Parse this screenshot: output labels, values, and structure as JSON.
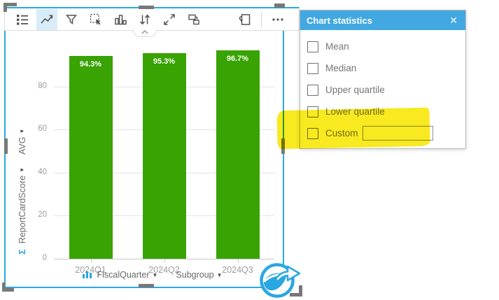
{
  "colors": {
    "card_border": "#29A9E2",
    "panel_header": "#41A8E1",
    "bar": "#38A303",
    "highlight": "#F8E80C"
  },
  "toolbar": {
    "buttons": [
      "legend",
      "line-chart",
      "filter",
      "selection-tools",
      "column-chart",
      "sort",
      "maximize",
      "cross-filters",
      "flip-card",
      "more-options"
    ],
    "selected": "line-chart"
  },
  "panel": {
    "title": "Chart statistics",
    "close_label": "✕",
    "options": [
      "Mean",
      "Median",
      "Upper quartile",
      "Lower quartile",
      "Custom"
    ],
    "custom_value": ""
  },
  "chart_data": {
    "type": "bar",
    "categories": [
      "2024Q1",
      "2024Q2",
      "2024Q3"
    ],
    "values": [
      94.3,
      95.3,
      96.7
    ],
    "value_labels": [
      "94.3%",
      "95.3%",
      "96.7%"
    ],
    "y_axis": {
      "stat": "AVG",
      "field": "ReportCardScore",
      "ticks": [
        0,
        20,
        40,
        60,
        80
      ],
      "lim": [
        0,
        100
      ]
    },
    "x_axis": {
      "field": "FiscalQuarter",
      "subgroup": "Subgroup"
    },
    "bar_color": "#38A303",
    "grid": true,
    "legend": "none",
    "title": ""
  }
}
